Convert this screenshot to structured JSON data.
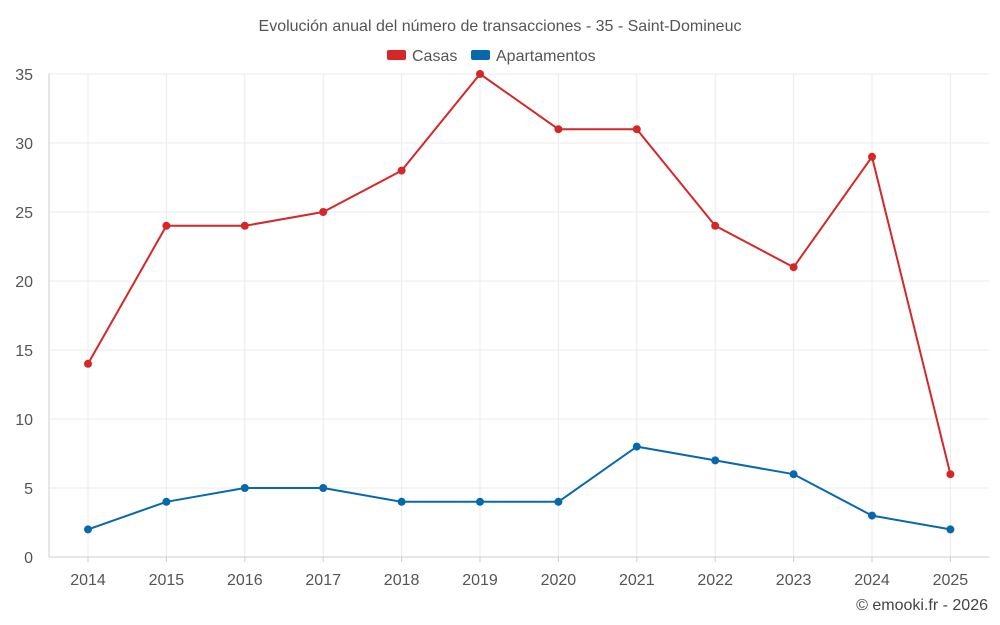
{
  "chart_data": {
    "type": "line",
    "title": "Evolución anual del número de transacciones - 35 - Saint-Domineuc",
    "categories": [
      "2014",
      "2015",
      "2016",
      "2017",
      "2018",
      "2019",
      "2020",
      "2021",
      "2022",
      "2023",
      "2024",
      "2025"
    ],
    "ylim": [
      0,
      35
    ],
    "yticks": [
      0,
      5,
      10,
      15,
      20,
      25,
      30,
      35
    ],
    "grid": true,
    "legend_position": "top-center",
    "series": [
      {
        "name": "Casas",
        "color": "#d62728",
        "values": [
          14,
          24,
          24,
          25,
          28,
          35,
          31,
          31,
          24,
          21,
          29,
          6
        ]
      },
      {
        "name": "Apartamentos",
        "color": "#0868ac",
        "values": [
          2,
          4,
          5,
          5,
          4,
          4,
          4,
          8,
          7,
          6,
          3,
          2
        ]
      }
    ]
  },
  "credit": "© emooki.fr - 2026"
}
